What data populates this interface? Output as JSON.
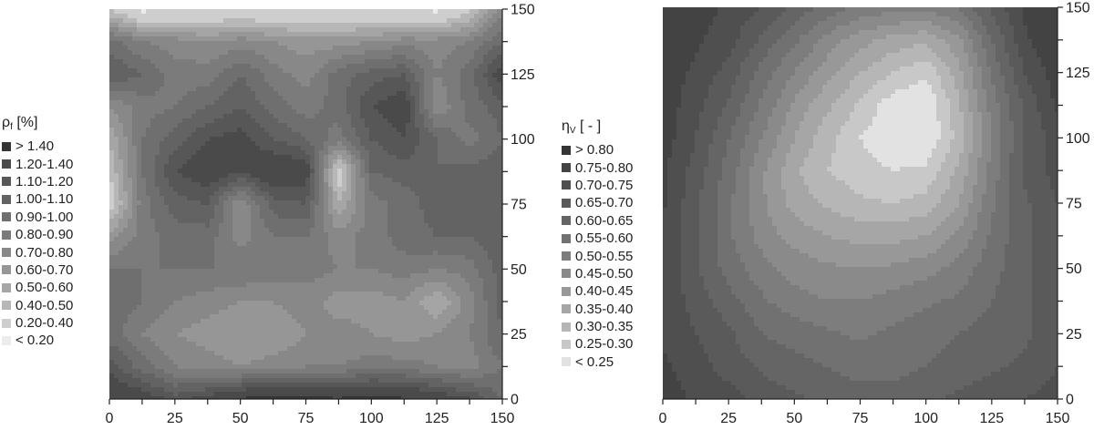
{
  "chart_data": [
    {
      "type": "heatmap",
      "subtype": "filled-contour",
      "legend": {
        "title_main": "ρ",
        "title_sub": "f",
        "title_unit": "[%]",
        "placement": "left",
        "classes": [
          "> 1.40",
          "1.20-1.40",
          "1.10-1.20",
          "1.00-1.10",
          "0.90-1.00",
          "0.80-0.90",
          "0.70-0.80",
          "0.60-0.70",
          "0.50-0.60",
          "0.40-0.50",
          "0.20-0.40",
          "< 0.20"
        ],
        "colors": [
          "#353535",
          "#4a4a4a",
          "#575757",
          "#636363",
          "#6f6f6f",
          "#7b7b7b",
          "#888888",
          "#969696",
          "#a5a5a5",
          "#b7b7b7",
          "#cecece",
          "#ececec"
        ]
      },
      "x": [
        0,
        12.5,
        25,
        37.5,
        50,
        62.5,
        75,
        87.5,
        100,
        112.5,
        125,
        137.5,
        150
      ],
      "y": [
        0,
        12.5,
        25,
        37.5,
        50,
        62.5,
        75,
        87.5,
        100,
        112.5,
        125,
        137.5,
        150
      ],
      "z_rows_bottom_to_top": [
        [
          1.38,
          1.3,
          1.15,
          1.25,
          1.4,
          1.45,
          1.45,
          1.4,
          1.45,
          1.4,
          1.3,
          1.2,
          1.0
        ],
        [
          1.15,
          0.95,
          0.8,
          0.75,
          0.7,
          0.75,
          0.8,
          0.8,
          0.85,
          0.85,
          0.8,
          0.75,
          0.9
        ],
        [
          0.95,
          0.8,
          0.7,
          0.65,
          0.6,
          0.6,
          0.7,
          0.75,
          0.7,
          0.65,
          0.7,
          0.8,
          1.0
        ],
        [
          1.0,
          0.9,
          0.8,
          0.75,
          0.7,
          0.7,
          0.75,
          0.65,
          0.65,
          0.7,
          0.5,
          0.75,
          1.05
        ],
        [
          0.9,
          0.9,
          0.9,
          0.9,
          0.9,
          0.85,
          0.85,
          0.8,
          0.8,
          0.85,
          0.8,
          0.85,
          1.05
        ],
        [
          0.65,
          0.85,
          0.95,
          0.95,
          0.75,
          0.9,
          0.9,
          0.75,
          0.85,
          0.95,
          1.0,
          1.0,
          1.1
        ],
        [
          0.3,
          0.85,
          1.05,
          1.1,
          0.7,
          1.05,
          1.1,
          0.5,
          0.85,
          0.95,
          1.05,
          1.1,
          1.1
        ],
        [
          0.4,
          0.9,
          1.2,
          1.3,
          1.2,
          1.35,
          1.3,
          0.3,
          1.0,
          1.05,
          1.0,
          1.05,
          1.05
        ],
        [
          0.5,
          0.9,
          1.05,
          1.2,
          1.25,
          1.1,
          1.0,
          0.85,
          1.1,
          1.2,
          1.0,
          0.85,
          1.0
        ],
        [
          0.7,
          0.85,
          0.9,
          1.0,
          1.1,
          0.95,
          0.85,
          0.95,
          1.2,
          1.3,
          0.7,
          0.95,
          1.05
        ],
        [
          1.1,
          1.0,
          0.85,
          0.85,
          1.0,
          0.85,
          0.75,
          0.95,
          1.05,
          1.1,
          0.8,
          0.95,
          1.3
        ],
        [
          0.95,
          0.8,
          0.75,
          0.7,
          0.75,
          0.7,
          0.65,
          0.65,
          0.7,
          0.75,
          0.75,
          0.8,
          1.0
        ],
        [
          0.4,
          0.15,
          0.2,
          0.2,
          0.25,
          0.2,
          0.2,
          0.2,
          0.2,
          0.2,
          0.15,
          0.35,
          0.75
        ]
      ],
      "xlim": [
        0,
        150
      ],
      "ylim": [
        0,
        150
      ],
      "x_ticks": [
        "0",
        "25",
        "50",
        "75",
        "100",
        "125",
        "150"
      ],
      "y_ticks": [
        "0",
        "25",
        "50",
        "75",
        "100",
        "125",
        "150"
      ],
      "y_axis_side": "right",
      "grid": false
    },
    {
      "type": "heatmap",
      "subtype": "filled-contour",
      "legend": {
        "title_main": "η",
        "title_sub": "V",
        "title_unit": "[ - ]",
        "placement": "left",
        "classes": [
          "> 0.80",
          "0.75-0.80",
          "0.70-0.75",
          "0.65-0.70",
          "0.60-0.65",
          "0.55-0.60",
          "0.50-0.55",
          "0.45-0.50",
          "0.40-0.45",
          "0.35-0.40",
          "0.30-0.35",
          "0.25-0.30",
          "< 0.25"
        ],
        "colors": [
          "#353535",
          "#434343",
          "#4f4f4f",
          "#5a5a5a",
          "#656565",
          "#717171",
          "#7d7d7d",
          "#8a8a8a",
          "#989898",
          "#a6a6a6",
          "#b6b6b6",
          "#c8c8c8",
          "#e2e2e2"
        ]
      },
      "x": [
        0,
        12.5,
        25,
        37.5,
        50,
        62.5,
        75,
        87.5,
        100,
        112.5,
        125,
        137.5,
        150
      ],
      "y": [
        0,
        12.5,
        25,
        37.5,
        50,
        62.5,
        75,
        87.5,
        100,
        112.5,
        125,
        137.5,
        150
      ],
      "z_rows_bottom_to_top": [
        [
          0.78,
          0.74,
          0.72,
          0.68,
          0.66,
          0.64,
          0.62,
          0.62,
          0.64,
          0.66,
          0.68,
          0.7,
          0.72
        ],
        [
          0.76,
          0.72,
          0.68,
          0.64,
          0.62,
          0.6,
          0.58,
          0.58,
          0.6,
          0.62,
          0.64,
          0.66,
          0.7
        ],
        [
          0.74,
          0.7,
          0.66,
          0.6,
          0.58,
          0.56,
          0.54,
          0.56,
          0.58,
          0.6,
          0.62,
          0.64,
          0.68
        ],
        [
          0.74,
          0.68,
          0.62,
          0.56,
          0.52,
          0.5,
          0.5,
          0.52,
          0.54,
          0.56,
          0.6,
          0.64,
          0.68
        ],
        [
          0.74,
          0.66,
          0.58,
          0.52,
          0.48,
          0.46,
          0.45,
          0.46,
          0.48,
          0.52,
          0.58,
          0.64,
          0.68
        ],
        [
          0.74,
          0.66,
          0.56,
          0.48,
          0.43,
          0.4,
          0.38,
          0.38,
          0.4,
          0.46,
          0.56,
          0.64,
          0.68
        ],
        [
          0.76,
          0.66,
          0.56,
          0.46,
          0.38,
          0.34,
          0.31,
          0.3,
          0.32,
          0.4,
          0.54,
          0.64,
          0.7
        ],
        [
          0.76,
          0.68,
          0.58,
          0.46,
          0.36,
          0.3,
          0.27,
          0.25,
          0.26,
          0.36,
          0.52,
          0.66,
          0.72
        ],
        [
          0.78,
          0.7,
          0.6,
          0.5,
          0.4,
          0.32,
          0.25,
          0.21,
          0.2,
          0.32,
          0.5,
          0.66,
          0.72
        ],
        [
          0.78,
          0.72,
          0.64,
          0.54,
          0.44,
          0.36,
          0.29,
          0.22,
          0.2,
          0.34,
          0.52,
          0.66,
          0.76
        ],
        [
          0.78,
          0.74,
          0.68,
          0.58,
          0.5,
          0.42,
          0.35,
          0.3,
          0.26,
          0.38,
          0.56,
          0.7,
          0.78
        ],
        [
          0.8,
          0.76,
          0.72,
          0.64,
          0.56,
          0.48,
          0.42,
          0.38,
          0.36,
          0.44,
          0.6,
          0.74,
          0.8
        ],
        [
          0.8,
          0.78,
          0.74,
          0.7,
          0.64,
          0.58,
          0.54,
          0.52,
          0.52,
          0.56,
          0.66,
          0.76,
          0.8
        ]
      ],
      "xlim": [
        0,
        150
      ],
      "ylim": [
        0,
        150
      ],
      "x_ticks": [
        "0",
        "25",
        "50",
        "75",
        "100",
        "125",
        "150"
      ],
      "y_ticks": [
        "0",
        "25",
        "50",
        "75",
        "100",
        "125",
        "150"
      ],
      "y_axis_side": "right",
      "grid": false
    }
  ]
}
